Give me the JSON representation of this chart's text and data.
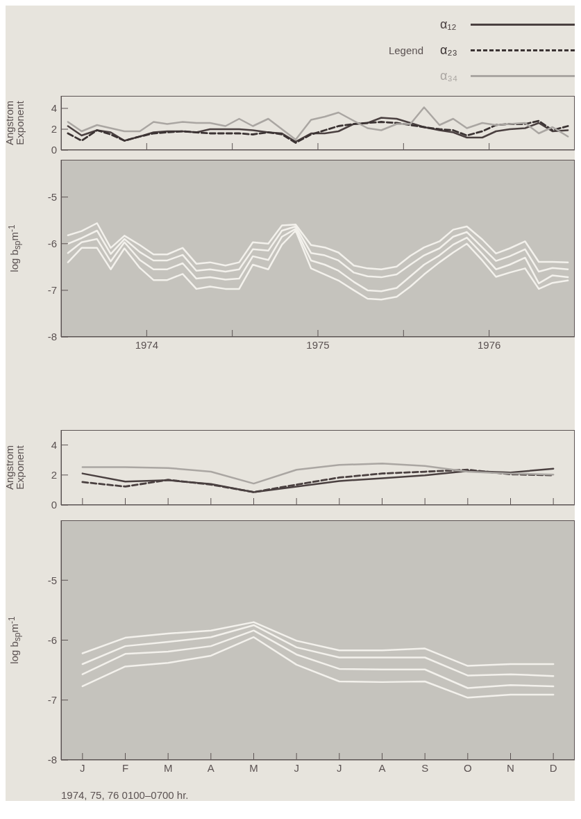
{
  "chart_data": [
    {
      "type": "line",
      "legend_title": "Legend",
      "legend": "top right",
      "ylabel": "Angstrom Exponent",
      "xlim": [
        1974,
        1977
      ],
      "xticks": [
        {
          "value": 1974.5,
          "label": null
        },
        {
          "value": 1975,
          "label": null
        },
        {
          "value": 1975.5,
          "label": null
        },
        {
          "value": 1976,
          "label": null
        },
        {
          "value": 1976.5,
          "label": null
        }
      ],
      "ylim": [
        0,
        5.2
      ],
      "yticks": [
        0,
        2,
        4
      ],
      "tick_labels": "y",
      "x": [
        1974.04,
        1974.12,
        1974.21,
        1974.29,
        1974.37,
        1974.46,
        1974.54,
        1974.62,
        1974.71,
        1974.79,
        1974.87,
        1974.96,
        1975.04,
        1975.12,
        1975.21,
        1975.29,
        1975.37,
        1975.46,
        1975.54,
        1975.62,
        1975.71,
        1975.79,
        1975.87,
        1975.96,
        1976.04,
        1976.12,
        1976.21,
        1976.29,
        1976.37,
        1976.46,
        1976.54,
        1976.62,
        1976.71,
        1976.79,
        1976.87,
        1976.96
      ],
      "series": [
        {
          "name": "α₁₂",
          "color": "#4a4040",
          "line_style": "solid",
          "values": [
            2.3,
            1.4,
            1.9,
            1.7,
            0.9,
            1.3,
            1.7,
            1.8,
            1.8,
            1.7,
            2.0,
            2.0,
            2.0,
            1.9,
            1.7,
            1.6,
            0.8,
            1.6,
            1.6,
            1.8,
            2.5,
            2.6,
            3.1,
            3.0,
            2.6,
            2.2,
            1.9,
            1.7,
            1.2,
            1.2,
            1.8,
            2.0,
            2.1,
            2.6,
            1.8,
            1.9
          ]
        },
        {
          "name": "α₂₃",
          "color": "#3b3333",
          "line_style": "dashed",
          "values": [
            1.6,
            0.9,
            1.9,
            1.5,
            0.9,
            1.3,
            1.6,
            1.7,
            1.8,
            1.7,
            1.6,
            1.6,
            1.6,
            1.5,
            1.7,
            1.5,
            0.7,
            1.5,
            1.9,
            2.3,
            2.5,
            2.6,
            2.7,
            2.6,
            2.4,
            2.2,
            2.0,
            1.9,
            1.4,
            1.8,
            2.4,
            2.5,
            2.5,
            2.8,
            1.9,
            2.3
          ]
        },
        {
          "name": "α₃₄",
          "color": "#aaa6a2",
          "line_style": "solid",
          "values": [
            2.7,
            1.8,
            2.4,
            2.1,
            1.8,
            1.8,
            2.7,
            2.5,
            2.7,
            2.6,
            2.6,
            2.3,
            3.0,
            2.3,
            3.0,
            2.0,
            1.0,
            2.9,
            3.2,
            3.6,
            2.8,
            2.1,
            1.9,
            2.5,
            2.5,
            4.1,
            2.4,
            3.0,
            2.1,
            2.6,
            2.4,
            2.5,
            2.6,
            1.6,
            2.2,
            1.3
          ]
        }
      ]
    },
    {
      "type": "line",
      "ylabel": "log b$_{sp}$m$^{-1}$",
      "xlim": [
        1974,
        1977
      ],
      "xticks": [
        {
          "value": 1974.5,
          "label": "1974"
        },
        {
          "value": 1975,
          "label": null
        },
        {
          "value": 1975.5,
          "label": "1975"
        },
        {
          "value": 1976,
          "label": null
        },
        {
          "value": 1976.5,
          "label": "1976"
        }
      ],
      "ylim": [
        -8,
        -4.2
      ],
      "yticks": [
        -8,
        -7,
        -6,
        -5
      ],
      "x": [
        1974.04,
        1974.12,
        1974.21,
        1974.29,
        1974.37,
        1974.46,
        1974.54,
        1974.62,
        1974.71,
        1974.79,
        1974.87,
        1974.96,
        1975.04,
        1975.12,
        1975.21,
        1975.29,
        1975.37,
        1975.46,
        1975.54,
        1975.62,
        1975.71,
        1975.79,
        1975.87,
        1975.96,
        1976.04,
        1976.12,
        1976.21,
        1976.29,
        1976.37,
        1976.46,
        1976.54,
        1976.62,
        1976.71,
        1976.79,
        1976.87,
        1976.96
      ],
      "series": [
        {
          "color": "#f3f1ec",
          "values": [
            -5.82,
            -5.73,
            -5.56,
            -6.09,
            -5.83,
            -6.03,
            -6.23,
            -6.23,
            -6.09,
            -6.43,
            -6.4,
            -6.47,
            -6.4,
            -5.97,
            -6.0,
            -5.61,
            -5.59,
            -6.03,
            -6.08,
            -6.19,
            -6.47,
            -6.53,
            -6.55,
            -6.49,
            -6.26,
            -6.08,
            -5.95,
            -5.7,
            -5.63,
            -5.91,
            -6.21,
            -6.1,
            -5.95,
            -6.39,
            -6.39,
            -6.4
          ]
        },
        {
          "color": "#f3f1ec",
          "values": [
            -6.0,
            -5.88,
            -5.72,
            -6.22,
            -5.9,
            -6.18,
            -6.36,
            -6.36,
            -6.24,
            -6.58,
            -6.55,
            -6.6,
            -6.55,
            -6.12,
            -6.15,
            -5.72,
            -5.63,
            -6.2,
            -6.25,
            -6.36,
            -6.62,
            -6.7,
            -6.72,
            -6.66,
            -6.45,
            -6.25,
            -6.1,
            -5.85,
            -5.75,
            -6.08,
            -6.37,
            -6.27,
            -6.12,
            -6.6,
            -6.52,
            -6.55
          ]
        },
        {
          "color": "#f3f1ec",
          "values": [
            -6.2,
            -5.97,
            -5.9,
            -6.38,
            -5.97,
            -6.35,
            -6.55,
            -6.55,
            -6.42,
            -6.75,
            -6.72,
            -6.77,
            -6.75,
            -6.27,
            -6.35,
            -5.85,
            -5.68,
            -6.36,
            -6.45,
            -6.58,
            -6.82,
            -7.0,
            -7.02,
            -6.95,
            -6.7,
            -6.45,
            -6.25,
            -6.02,
            -5.87,
            -6.22,
            -6.55,
            -6.45,
            -6.3,
            -6.85,
            -6.68,
            -6.72
          ]
        },
        {
          "color": "#f3f1ec",
          "values": [
            -6.4,
            -6.09,
            -6.09,
            -6.55,
            -6.1,
            -6.52,
            -6.78,
            -6.78,
            -6.65,
            -6.97,
            -6.92,
            -6.97,
            -6.97,
            -6.45,
            -6.55,
            -6.02,
            -5.72,
            -6.53,
            -6.66,
            -6.79,
            -7.0,
            -7.18,
            -7.2,
            -7.14,
            -6.92,
            -6.66,
            -6.4,
            -6.19,
            -6.0,
            -6.36,
            -6.71,
            -6.62,
            -6.53,
            -6.97,
            -6.84,
            -6.79
          ]
        }
      ]
    },
    {
      "type": "line",
      "ylabel": "Angstrom Exponent",
      "categories": [
        null,
        null,
        null,
        null,
        null,
        null,
        null,
        null,
        null,
        null,
        null,
        null
      ],
      "ylim": [
        0,
        5
      ],
      "yticks": [
        0,
        2,
        4
      ],
      "tick_labels": "y",
      "series": [
        {
          "color": "#4a4040",
          "line_style": "solid",
          "values": [
            2.1,
            1.56,
            1.65,
            1.4,
            0.86,
            1.23,
            1.6,
            1.78,
            1.98,
            2.27,
            2.17,
            2.42
          ]
        },
        {
          "color": "#4a4040",
          "line_style": "dashed",
          "values": [
            1.53,
            1.23,
            1.68,
            1.36,
            0.86,
            1.36,
            1.83,
            2.1,
            2.22,
            2.35,
            2.05,
            1.98
          ]
        },
        {
          "color": "#aaa6a2",
          "line_style": "solid",
          "values": [
            2.52,
            2.52,
            2.47,
            2.22,
            1.43,
            2.35,
            2.67,
            2.77,
            2.6,
            2.22,
            2.1,
            2.03
          ]
        }
      ]
    },
    {
      "type": "line",
      "ylabel": "log b$_{sp}$m$^{-1}$",
      "categories": [
        "J",
        "F",
        "M",
        "A",
        "M",
        "J",
        "J",
        "A",
        "S",
        "O",
        "N",
        "D"
      ],
      "ylim": [
        -8,
        -4
      ],
      "yticks": [
        -8,
        -7,
        -6,
        -5
      ],
      "annotations": [
        "1974, 75, 76  0100–0700 hr."
      ],
      "series": [
        {
          "color": "#f3f1ec",
          "values": [
            -6.22,
            -5.96,
            -5.89,
            -5.84,
            -5.7,
            -6.01,
            -6.17,
            -6.17,
            -6.14,
            -6.43,
            -6.4,
            -6.4
          ]
        },
        {
          "color": "#f3f1ec",
          "values": [
            -6.4,
            -6.1,
            -6.03,
            -5.95,
            -5.75,
            -6.12,
            -6.29,
            -6.29,
            -6.29,
            -6.59,
            -6.57,
            -6.6
          ]
        },
        {
          "color": "#f3f1ec",
          "values": [
            -6.57,
            -6.23,
            -6.19,
            -6.1,
            -5.84,
            -6.24,
            -6.48,
            -6.49,
            -6.49,
            -6.8,
            -6.75,
            -6.77
          ]
        },
        {
          "color": "#f3f1ec",
          "values": [
            -6.77,
            -6.44,
            -6.38,
            -6.26,
            -5.95,
            -6.41,
            -6.69,
            -6.7,
            -6.69,
            -6.96,
            -6.91,
            -6.91
          ]
        }
      ]
    }
  ]
}
